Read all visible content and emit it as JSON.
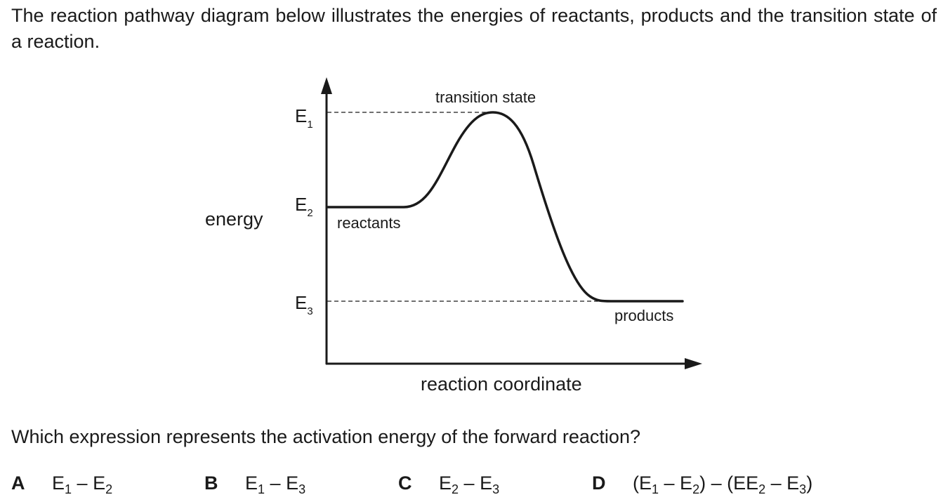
{
  "intro_text": "The reaction pathway diagram below illustrates the energies of reactants, products and the transition state of a reaction.",
  "diagram": {
    "y_axis_label": "energy",
    "x_axis_label": "reaction coordinate",
    "levels": [
      {
        "symbol": "E",
        "subscript": "1"
      },
      {
        "symbol": "E",
        "subscript": "2"
      },
      {
        "symbol": "E",
        "subscript": "3"
      }
    ],
    "annotations": {
      "transition_state": "transition state",
      "reactants": "reactants",
      "products": "products"
    }
  },
  "question_text": "Which expression represents the activation energy of the forward reaction?",
  "options": [
    {
      "letter": "A",
      "parts": [
        [
          "E",
          "1"
        ],
        [
          " – ",
          ""
        ],
        [
          "E",
          "2"
        ]
      ]
    },
    {
      "letter": "B",
      "parts": [
        [
          "E",
          "1"
        ],
        [
          " – ",
          ""
        ],
        [
          "E",
          "3"
        ]
      ]
    },
    {
      "letter": "C",
      "parts": [
        [
          "E",
          "2"
        ],
        [
          " – ",
          ""
        ],
        [
          "E",
          "3"
        ]
      ]
    },
    {
      "letter": "D",
      "parts": [
        [
          "(E",
          "1"
        ],
        [
          " – ",
          ""
        ],
        [
          "E",
          "2"
        ],
        [
          ") – (E",
          ""
        ],
        [
          "E",
          "2"
        ],
        [
          " – ",
          ""
        ],
        [
          "E",
          "3"
        ],
        [
          ")",
          ""
        ]
      ]
    }
  ]
}
